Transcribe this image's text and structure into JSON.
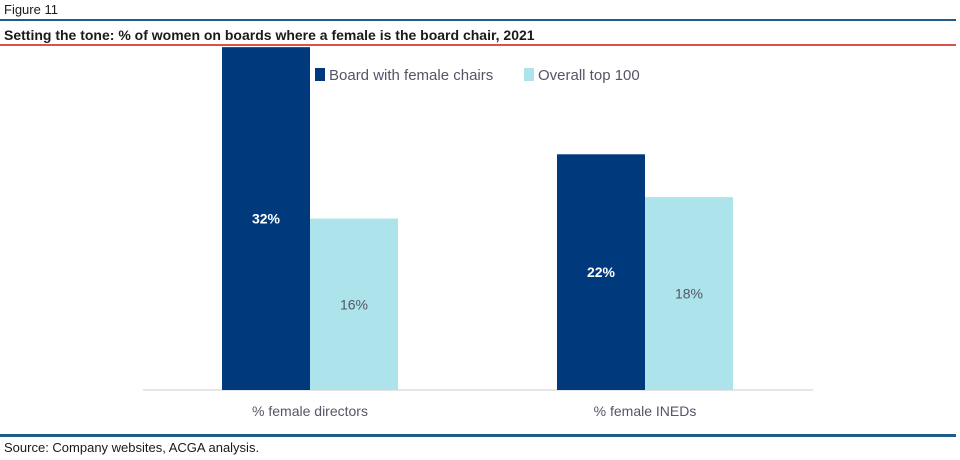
{
  "figure_label": "Figure 11",
  "title": "Setting the tone: % of women on boards where a female is the board chair, 2021",
  "source": "Source: Company websites, ACGA analysis.",
  "colors": {
    "series_1": "#003a7d",
    "series_2": "#ade3ea",
    "label_on_dark": "#ffffff",
    "label_on_light": "#555566",
    "axis_text": "#555566",
    "baseline": "#cccccc",
    "legend_text": "#555566"
  },
  "chart_data": {
    "type": "bar",
    "categories": [
      "% female directors",
      "% female INEDs"
    ],
    "series": [
      {
        "name": "Board with female chairs",
        "values": [
          32,
          22
        ],
        "labels": [
          "32%",
          "22%"
        ]
      },
      {
        "name": "Overall top 100",
        "values": [
          16,
          18
        ],
        "labels": [
          "16%",
          "18%"
        ]
      }
    ],
    "ylim": [
      0,
      35
    ],
    "grid": false,
    "legend": "top-center"
  }
}
